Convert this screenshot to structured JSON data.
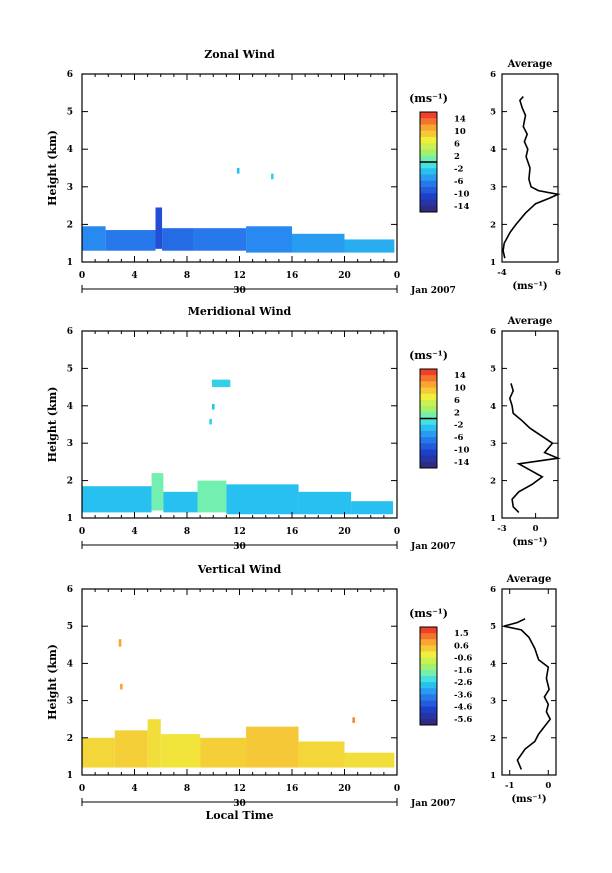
{
  "chart_data": [
    {
      "type": "heatmap",
      "title": "Zonal Wind",
      "xlabel": "",
      "ylabel": "Height (km)",
      "xlim": [
        0,
        24
      ],
      "ylim": [
        1,
        6
      ],
      "xticks": [
        "0",
        "4",
        "8",
        "12",
        "16",
        "20",
        "0"
      ],
      "yticks": [
        "1",
        "2",
        "3",
        "4",
        "5",
        "6"
      ],
      "date_label": "30",
      "month_label": "Jan 2007",
      "colorbar": {
        "unit": "(ms⁻¹)",
        "ticks": [
          "14",
          "10",
          "6",
          "2",
          "-2",
          "-6",
          "-10",
          "-14"
        ],
        "range": [
          -16,
          16
        ],
        "zero_line": 0
      },
      "cells": [
        {
          "t0": 0.0,
          "t1": 1.8,
          "h0": 1.3,
          "h1": 1.95,
          "v": -6
        },
        {
          "t0": 1.8,
          "t1": 5.6,
          "h0": 1.3,
          "h1": 1.85,
          "v": -7
        },
        {
          "t0": 5.6,
          "t1": 6.1,
          "h0": 1.35,
          "h1": 2.45,
          "v": -10
        },
        {
          "t0": 6.1,
          "t1": 8.5,
          "h0": 1.3,
          "h1": 1.9,
          "v": -8
        },
        {
          "t0": 8.5,
          "t1": 12.5,
          "h0": 1.3,
          "h1": 1.9,
          "v": -7
        },
        {
          "t0": 12.5,
          "t1": 16.0,
          "h0": 1.25,
          "h1": 1.95,
          "v": -6
        },
        {
          "t0": 16.0,
          "t1": 20.0,
          "h0": 1.25,
          "h1": 1.75,
          "v": -5
        },
        {
          "t0": 20.0,
          "t1": 23.8,
          "h0": 1.25,
          "h1": 1.6,
          "v": -4
        },
        {
          "t0": 11.8,
          "t1": 12.0,
          "h0": 3.35,
          "h1": 3.5,
          "v": -3
        },
        {
          "t0": 14.4,
          "t1": 14.6,
          "h0": 3.2,
          "h1": 3.35,
          "v": -2
        }
      ],
      "average": {
        "title": "Average",
        "xlabel": "(ms⁻¹)",
        "xlim": [
          -4,
          6
        ],
        "xticks": [
          "-4",
          "6"
        ],
        "ylim": [
          1,
          6
        ],
        "yticks": [
          "1",
          "2",
          "3",
          "4",
          "5",
          "6"
        ],
        "profile": [
          {
            "h": 1.1,
            "v": -3.5
          },
          {
            "h": 1.3,
            "v": -3.8
          },
          {
            "h": 1.5,
            "v": -3.6
          },
          {
            "h": 1.8,
            "v": -2.5
          },
          {
            "h": 2.0,
            "v": -1.5
          },
          {
            "h": 2.3,
            "v": 0.2
          },
          {
            "h": 2.55,
            "v": 2.0
          },
          {
            "h": 2.7,
            "v": 4.5
          },
          {
            "h": 2.8,
            "v": 6.0
          },
          {
            "h": 2.9,
            "v": 2.5
          },
          {
            "h": 3.0,
            "v": 1.2
          },
          {
            "h": 3.2,
            "v": 0.8
          },
          {
            "h": 3.5,
            "v": 1.0
          },
          {
            "h": 3.8,
            "v": 0.3
          },
          {
            "h": 4.0,
            "v": 0.6
          },
          {
            "h": 4.2,
            "v": 0.0
          },
          {
            "h": 4.4,
            "v": 0.5
          },
          {
            "h": 4.6,
            "v": -0.2
          },
          {
            "h": 4.9,
            "v": 0.2
          },
          {
            "h": 5.1,
            "v": -0.4
          },
          {
            "h": 5.3,
            "v": -0.8
          },
          {
            "h": 5.4,
            "v": -0.2
          }
        ]
      }
    },
    {
      "type": "heatmap",
      "title": "Meridional Wind",
      "xlabel": "",
      "ylabel": "Height (km)",
      "xlim": [
        0,
        24
      ],
      "ylim": [
        1,
        6
      ],
      "xticks": [
        "0",
        "4",
        "8",
        "12",
        "16",
        "20",
        "0"
      ],
      "yticks": [
        "1",
        "2",
        "3",
        "4",
        "5",
        "6"
      ],
      "date_label": "30",
      "month_label": "Jan 2007",
      "colorbar": {
        "unit": "(ms⁻¹)",
        "ticks": [
          "14",
          "10",
          "6",
          "2",
          "-2",
          "-6",
          "-10",
          "-14"
        ],
        "range": [
          -16,
          16
        ],
        "zero_line": 0
      },
      "cells": [
        {
          "t0": 0.0,
          "t1": 5.3,
          "h0": 1.15,
          "h1": 1.85,
          "v": -3
        },
        {
          "t0": 5.3,
          "t1": 6.2,
          "h0": 1.2,
          "h1": 2.2,
          "v": 1
        },
        {
          "t0": 6.2,
          "t1": 8.8,
          "h0": 1.15,
          "h1": 1.7,
          "v": -3
        },
        {
          "t0": 8.8,
          "t1": 11.0,
          "h0": 1.15,
          "h1": 2.0,
          "v": 1
        },
        {
          "t0": 11.0,
          "t1": 16.5,
          "h0": 1.1,
          "h1": 1.9,
          "v": -3
        },
        {
          "t0": 16.5,
          "t1": 20.5,
          "h0": 1.1,
          "h1": 1.7,
          "v": -3
        },
        {
          "t0": 20.5,
          "t1": 23.7,
          "h0": 1.1,
          "h1": 1.45,
          "v": -3
        },
        {
          "t0": 9.9,
          "t1": 11.3,
          "h0": 4.5,
          "h1": 4.7,
          "v": -2
        },
        {
          "t0": 9.9,
          "t1": 10.1,
          "h0": 3.9,
          "h1": 4.05,
          "v": -3
        },
        {
          "t0": 9.7,
          "t1": 9.9,
          "h0": 3.5,
          "h1": 3.65,
          "v": -2
        }
      ],
      "average": {
        "title": "Average",
        "xlabel": "(ms⁻¹)",
        "xlim": [
          -3,
          2
        ],
        "xticks": [
          "-3",
          "0"
        ],
        "ylim": [
          1,
          6
        ],
        "yticks": [
          "1",
          "2",
          "3",
          "4",
          "5",
          "6"
        ],
        "profile": [
          {
            "h": 1.15,
            "v": -1.5
          },
          {
            "h": 1.3,
            "v": -2.0
          },
          {
            "h": 1.5,
            "v": -2.1
          },
          {
            "h": 1.7,
            "v": -1.5
          },
          {
            "h": 1.9,
            "v": -0.3
          },
          {
            "h": 2.1,
            "v": 0.6
          },
          {
            "h": 2.3,
            "v": -0.6
          },
          {
            "h": 2.45,
            "v": -1.5
          },
          {
            "h": 2.6,
            "v": 2.0
          },
          {
            "h": 2.75,
            "v": 0.8
          },
          {
            "h": 3.0,
            "v": 1.5
          },
          {
            "h": 3.2,
            "v": 0.5
          },
          {
            "h": 3.4,
            "v": -0.5
          },
          {
            "h": 3.6,
            "v": -1.2
          },
          {
            "h": 3.8,
            "v": -2.0
          },
          {
            "h": 4.0,
            "v": -2.1
          },
          {
            "h": 4.2,
            "v": -2.3
          },
          {
            "h": 4.4,
            "v": -2.0
          },
          {
            "h": 4.6,
            "v": -2.2
          }
        ]
      }
    },
    {
      "type": "heatmap",
      "title": "Vertical Wind",
      "xlabel": "Local Time",
      "ylabel": "Height (km)",
      "xlim": [
        0,
        24
      ],
      "ylim": [
        1,
        6
      ],
      "xticks": [
        "0",
        "4",
        "8",
        "12",
        "16",
        "20",
        "0"
      ],
      "yticks": [
        "1",
        "2",
        "3",
        "4",
        "5",
        "6"
      ],
      "date_label": "30",
      "month_label": "Jan 2007",
      "colorbar": {
        "unit": "(ms⁻¹)",
        "ticks": [
          "1.5",
          "0.6",
          "-0.6",
          "-1.6",
          "-2.6",
          "-3.6",
          "-4.6",
          "-5.6"
        ],
        "range": [
          -6.2,
          2.2
        ]
      },
      "cells": [
        {
          "t0": 0.0,
          "t1": 2.5,
          "h0": 1.2,
          "h1": 2.0,
          "v": 0.2
        },
        {
          "t0": 2.5,
          "t1": 5.0,
          "h0": 1.2,
          "h1": 2.2,
          "v": 0.3
        },
        {
          "t0": 5.0,
          "t1": 6.0,
          "h0": 1.2,
          "h1": 2.5,
          "v": 0.1
        },
        {
          "t0": 6.0,
          "t1": 9.0,
          "h0": 1.2,
          "h1": 2.1,
          "v": 0.0
        },
        {
          "t0": 9.0,
          "t1": 12.5,
          "h0": 1.2,
          "h1": 2.0,
          "v": 0.3
        },
        {
          "t0": 12.5,
          "t1": 16.5,
          "h0": 1.2,
          "h1": 2.3,
          "v": 0.4
        },
        {
          "t0": 16.5,
          "t1": 20.0,
          "h0": 1.2,
          "h1": 1.9,
          "v": 0.2
        },
        {
          "t0": 20.0,
          "t1": 23.8,
          "h0": 1.2,
          "h1": 1.6,
          "v": 0.1
        },
        {
          "t0": 2.8,
          "t1": 3.0,
          "h0": 4.45,
          "h1": 4.65,
          "v": 0.9
        },
        {
          "t0": 2.9,
          "t1": 3.1,
          "h0": 3.3,
          "h1": 3.45,
          "v": 0.9
        },
        {
          "t0": 20.6,
          "t1": 20.8,
          "h0": 2.4,
          "h1": 2.55,
          "v": 1.2
        }
      ],
      "average": {
        "title": "Average",
        "xlabel": "(ms⁻¹)",
        "xlim": [
          -1.2,
          0.2
        ],
        "xticks": [
          "-1",
          "0"
        ],
        "ylim": [
          1,
          6
        ],
        "yticks": [
          "1",
          "2",
          "3",
          "4",
          "5",
          "6"
        ],
        "profile": [
          {
            "h": 1.15,
            "v": -0.7
          },
          {
            "h": 1.4,
            "v": -0.8
          },
          {
            "h": 1.7,
            "v": -0.6
          },
          {
            "h": 1.9,
            "v": -0.35
          },
          {
            "h": 2.1,
            "v": -0.25
          },
          {
            "h": 2.3,
            "v": -0.1
          },
          {
            "h": 2.5,
            "v": 0.05
          },
          {
            "h": 2.7,
            "v": -0.05
          },
          {
            "h": 2.9,
            "v": 0.0
          },
          {
            "h": 3.1,
            "v": -0.1
          },
          {
            "h": 3.3,
            "v": 0.02
          },
          {
            "h": 3.6,
            "v": -0.05
          },
          {
            "h": 3.9,
            "v": 0.0
          },
          {
            "h": 4.1,
            "v": -0.25
          },
          {
            "h": 4.4,
            "v": -0.35
          },
          {
            "h": 4.7,
            "v": -0.5
          },
          {
            "h": 4.9,
            "v": -0.7
          },
          {
            "h": 5.0,
            "v": -1.15
          },
          {
            "h": 5.1,
            "v": -0.8
          },
          {
            "h": 5.2,
            "v": -0.6
          }
        ]
      }
    }
  ]
}
